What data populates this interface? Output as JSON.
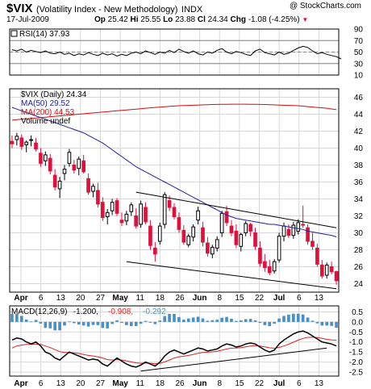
{
  "header": {
    "symbol": "$VIX",
    "name": "(Volatility Index - New Methodology)",
    "exchange": "INDX",
    "date": "17-Jul-2009",
    "stats": [
      {
        "label": "Op",
        "value": "25.42"
      },
      {
        "label": "Hi",
        "value": "25.55"
      },
      {
        "label": "Lo",
        "value": "23.88"
      },
      {
        "label": "Cl",
        "value": "24.34"
      },
      {
        "label": "Chg",
        "value": "-1.08 (-4.25%)"
      }
    ],
    "watermark": "@ StockCharts.com"
  },
  "colors": {
    "up": "#000000",
    "down": "#e0103c",
    "ma50": "#2020a0",
    "ma200": "#d01010",
    "histogram": "#4a90c8",
    "macd": "#000000",
    "signal": "#e02020",
    "grid": "#d8d8d8"
  },
  "chart_data": [
    {
      "type": "line",
      "panel": "rsi",
      "legend": "RSI(14) 37.93",
      "y_ticks": [
        "90",
        "70",
        "50",
        "30",
        "10"
      ],
      "ylim": [
        10,
        90
      ],
      "reference_lines": [
        70,
        50,
        30
      ],
      "series": [
        {
          "name": "RSI(14)",
          "values": [
            54,
            52,
            55,
            50,
            53,
            51,
            49,
            52,
            48,
            47,
            50,
            46,
            48,
            44,
            47,
            45,
            49,
            46,
            44,
            48,
            45,
            47,
            43,
            46,
            44,
            48,
            50,
            47,
            52,
            49,
            46,
            50,
            48,
            53,
            49,
            55,
            51,
            48,
            52,
            47,
            45,
            50,
            48,
            53,
            56,
            50,
            47,
            51,
            49,
            46,
            44,
            52,
            55,
            49,
            47,
            45,
            50,
            46,
            48,
            53,
            57,
            60,
            58,
            52,
            47,
            49,
            46,
            44,
            42,
            38
          ]
        }
      ]
    },
    {
      "type": "candlestick",
      "panel": "price",
      "legend": [
        {
          "text": "$VIX (Daily) 24.34",
          "color": "#000000"
        },
        {
          "text": "MA(50) 29.52",
          "color": "#2020a0"
        },
        {
          "text": "MA(200) 44.53",
          "color": "#d01010"
        },
        {
          "text": "Volume undef",
          "color": "#000000"
        }
      ],
      "y_ticks": [
        "46",
        "44",
        "42",
        "40",
        "38",
        "36",
        "34",
        "32",
        "30",
        "28",
        "26",
        "24"
      ],
      "ylim": [
        23,
        47
      ],
      "x_labels": [
        "Apr",
        "6",
        "13",
        "20",
        "27",
        "May",
        "11",
        "18",
        "26",
        "Jun",
        "8",
        "15",
        "22",
        "Jul",
        "6",
        "13"
      ],
      "candles": [
        [
          40.8,
          41.5,
          40.0,
          40.5
        ],
        [
          41.0,
          41.8,
          40.3,
          41.4
        ],
        [
          41.2,
          41.6,
          39.8,
          40.2
        ],
        [
          40.4,
          40.9,
          39.5,
          40.7
        ],
        [
          40.9,
          41.5,
          40.2,
          41.0
        ],
        [
          40.6,
          41.2,
          39.6,
          39.9
        ],
        [
          39.4,
          40.0,
          37.8,
          38.2
        ],
        [
          38.5,
          39.6,
          37.9,
          39.2
        ],
        [
          38.8,
          39.3,
          36.9,
          37.3
        ],
        [
          36.8,
          37.5,
          35.0,
          35.4
        ],
        [
          35.2,
          36.6,
          34.1,
          36.1
        ],
        [
          37.0,
          38.0,
          36.2,
          37.5
        ],
        [
          38.2,
          39.9,
          37.8,
          39.5
        ],
        [
          38.0,
          38.6,
          37.0,
          37.4
        ],
        [
          37.6,
          39.0,
          36.8,
          38.7
        ],
        [
          38.5,
          39.2,
          37.0,
          37.2
        ],
        [
          36.4,
          37.0,
          34.5,
          34.8
        ],
        [
          34.9,
          35.8,
          34.2,
          35.5
        ],
        [
          35.0,
          35.9,
          33.0,
          33.4
        ],
        [
          33.6,
          34.2,
          31.4,
          31.8
        ],
        [
          31.9,
          32.8,
          31.0,
          32.4
        ],
        [
          32.6,
          34.0,
          32.1,
          33.6
        ],
        [
          33.8,
          34.1,
          32.0,
          32.3
        ],
        [
          31.5,
          32.4,
          30.8,
          31.2
        ],
        [
          31.4,
          32.6,
          30.9,
          32.2
        ],
        [
          32.5,
          33.6,
          32.0,
          33.3
        ],
        [
          32.0,
          32.9,
          30.5,
          30.8
        ],
        [
          31.0,
          33.8,
          30.6,
          33.4
        ],
        [
          33.0,
          33.6,
          31.0,
          31.3
        ],
        [
          30.8,
          31.5,
          28.0,
          28.5
        ],
        [
          28.2,
          28.9,
          26.6,
          27.5
        ],
        [
          29.0,
          31.2,
          28.6,
          30.8
        ],
        [
          31.0,
          34.8,
          30.5,
          34.5
        ],
        [
          33.8,
          34.4,
          32.6,
          33.0
        ],
        [
          33.0,
          33.5,
          31.6,
          31.9
        ],
        [
          31.8,
          32.4,
          30.0,
          30.4
        ],
        [
          30.3,
          30.9,
          28.6,
          28.9
        ],
        [
          28.6,
          29.9,
          28.3,
          29.6
        ],
        [
          29.5,
          31.0,
          29.0,
          30.7
        ],
        [
          31.5,
          33.1,
          31.0,
          32.6
        ],
        [
          30.6,
          31.3,
          28.4,
          28.9
        ],
        [
          28.8,
          29.5,
          27.2,
          27.6
        ],
        [
          27.5,
          28.6,
          27.0,
          28.3
        ],
        [
          28.2,
          29.6,
          27.8,
          29.2
        ],
        [
          30.0,
          32.6,
          29.5,
          32.3
        ],
        [
          32.5,
          33.2,
          30.8,
          31.2
        ],
        [
          30.8,
          31.5,
          29.6,
          30.0
        ],
        [
          30.2,
          31.0,
          28.2,
          28.6
        ],
        [
          28.4,
          30.0,
          27.8,
          29.8
        ],
        [
          30.0,
          31.4,
          29.6,
          31.1
        ],
        [
          31.0,
          31.2,
          29.6,
          30.2
        ],
        [
          30.0,
          30.6,
          28.0,
          28.4
        ],
        [
          28.2,
          29.0,
          26.0,
          26.4
        ],
        [
          26.6,
          27.5,
          25.4,
          25.9
        ],
        [
          26.0,
          26.8,
          25.0,
          25.3
        ],
        [
          25.5,
          26.9,
          25.2,
          26.6
        ],
        [
          26.8,
          30.0,
          26.5,
          29.6
        ],
        [
          29.6,
          31.2,
          29.0,
          30.8
        ],
        [
          30.4,
          31.0,
          29.4,
          29.7
        ],
        [
          29.7,
          31.3,
          29.3,
          30.9
        ],
        [
          30.2,
          31.6,
          29.8,
          31.2
        ],
        [
          31.0,
          33.2,
          30.6,
          30.9
        ],
        [
          30.6,
          31.0,
          28.6,
          29.0
        ],
        [
          29.0,
          30.0,
          28.0,
          28.4
        ],
        [
          28.2,
          28.7,
          26.0,
          26.3
        ],
        [
          26.2,
          26.8,
          24.6,
          24.9
        ],
        [
          25.0,
          26.5,
          24.6,
          26.2
        ],
        [
          26.0,
          26.6,
          25.1,
          25.4
        ],
        [
          25.42,
          25.55,
          23.88,
          24.34
        ]
      ],
      "series": [
        {
          "name": "MA(50)",
          "values": [
            44.8,
            44.6,
            44.4,
            44.2,
            44.0,
            43.8,
            43.6,
            43.4,
            43.2,
            43.0,
            42.8,
            42.6,
            42.4,
            42.2,
            42.0,
            41.8,
            41.5,
            41.2,
            40.9,
            40.6,
            40.2,
            39.8,
            39.4,
            39.0,
            38.6,
            38.2,
            37.8,
            37.5,
            37.2,
            36.9,
            36.6,
            36.3,
            36.0,
            35.7,
            35.4,
            35.1,
            34.8,
            34.5,
            34.2,
            33.9,
            33.6,
            33.3,
            33.0,
            32.7,
            32.4,
            32.1,
            31.9,
            31.7,
            31.6,
            31.5,
            31.4,
            31.3,
            31.2,
            31.1,
            31.0,
            31.0,
            30.9,
            30.8,
            30.7,
            30.6,
            30.5,
            30.4,
            30.2,
            30.1,
            30.0,
            29.9,
            29.8,
            29.7,
            29.52
          ]
        },
        {
          "name": "MA(200)",
          "values": [
            43.3,
            43.35,
            43.4,
            43.45,
            43.5,
            43.55,
            43.6,
            43.65,
            43.7,
            43.75,
            43.8,
            43.85,
            43.9,
            43.95,
            44.0,
            44.05,
            44.1,
            44.15,
            44.2,
            44.25,
            44.3,
            44.35,
            44.4,
            44.45,
            44.5,
            44.55,
            44.6,
            44.65,
            44.7,
            44.75,
            44.8,
            44.84,
            44.88,
            44.92,
            44.96,
            45.0,
            45.02,
            45.04,
            45.06,
            45.08,
            45.1,
            45.12,
            45.14,
            45.15,
            45.16,
            45.17,
            45.18,
            45.18,
            45.18,
            45.18,
            45.17,
            45.16,
            45.15,
            45.14,
            45.12,
            45.1,
            45.08,
            45.06,
            45.04,
            45.02,
            45.0,
            44.95,
            44.9,
            44.85,
            44.8,
            44.75,
            44.7,
            44.62,
            44.53
          ]
        }
      ],
      "trendlines": [
        {
          "from": [
            26,
            34.8
          ],
          "to": [
            68,
            30.6
          ]
        },
        {
          "from": [
            24,
            26.6
          ],
          "to": [
            68,
            23.4
          ]
        }
      ]
    },
    {
      "type": "line",
      "panel": "macd",
      "legend": [
        {
          "text": "MACD(12,26,9)",
          "color": "#000000"
        },
        {
          "text": "-1.200,",
          "color": "#000000"
        },
        {
          "text": "-0.908,",
          "color": "#e02020"
        },
        {
          "text": "-0.292",
          "color": "#4a90c8"
        }
      ],
      "y_ticks": [
        "0.5",
        "0.0",
        "-0.5",
        "-1.0",
        "-1.5",
        "-2.0",
        "-2.5"
      ],
      "ylim": [
        -2.7,
        0.8
      ],
      "x_labels": [
        "Apr",
        "6",
        "13",
        "20",
        "27",
        "May",
        "11",
        "18",
        "26",
        "Jun",
        "8",
        "15",
        "22",
        "Jul",
        "6",
        "13"
      ],
      "series": [
        {
          "name": "MACD",
          "values": [
            -0.9,
            -0.8,
            -0.85,
            -1.0,
            -1.1,
            -1.0,
            -1.2,
            -1.5,
            -1.6,
            -1.8,
            -1.9,
            -1.7,
            -1.5,
            -1.6,
            -1.7,
            -1.8,
            -1.9,
            -1.85,
            -1.9,
            -2.1,
            -2.2,
            -2.0,
            -1.8,
            -1.95,
            -2.1,
            -2.2,
            -2.25,
            -2.15,
            -2.0,
            -2.1,
            -2.2,
            -2.0,
            -1.7,
            -1.5,
            -1.4,
            -1.5,
            -1.6,
            -1.5,
            -1.4,
            -1.3,
            -1.35,
            -1.45,
            -1.4,
            -1.35,
            -1.2,
            -1.1,
            -1.15,
            -1.25,
            -1.2,
            -1.1,
            -1.05,
            -1.1,
            -1.25,
            -1.4,
            -1.5,
            -1.4,
            -1.1,
            -0.9,
            -0.75,
            -0.6,
            -0.5,
            -0.45,
            -0.55,
            -0.7,
            -0.85,
            -1.0,
            -1.05,
            -1.1,
            -1.2
          ]
        },
        {
          "name": "Signal",
          "values": [
            -1.3,
            -1.2,
            -1.15,
            -1.12,
            -1.12,
            -1.1,
            -1.12,
            -1.2,
            -1.28,
            -1.38,
            -1.48,
            -1.52,
            -1.52,
            -1.54,
            -1.57,
            -1.62,
            -1.67,
            -1.7,
            -1.74,
            -1.8,
            -1.88,
            -1.9,
            -1.88,
            -1.9,
            -1.94,
            -1.99,
            -2.04,
            -2.06,
            -2.05,
            -2.06,
            -2.09,
            -2.07,
            -1.99,
            -1.9,
            -1.8,
            -1.74,
            -1.71,
            -1.67,
            -1.62,
            -1.56,
            -1.52,
            -1.51,
            -1.49,
            -1.46,
            -1.41,
            -1.35,
            -1.31,
            -1.3,
            -1.28,
            -1.24,
            -1.2,
            -1.18,
            -1.2,
            -1.24,
            -1.29,
            -1.31,
            -1.27,
            -1.2,
            -1.11,
            -1.01,
            -0.91,
            -0.82,
            -0.77,
            -0.76,
            -0.78,
            -0.82,
            -0.87,
            -0.9,
            -0.908
          ]
        }
      ],
      "histogram": [
        0.4,
        0.4,
        0.3,
        0.12,
        0.02,
        0.1,
        -0.08,
        -0.3,
        -0.32,
        -0.42,
        -0.42,
        -0.18,
        0.02,
        -0.06,
        -0.13,
        -0.18,
        -0.23,
        -0.15,
        -0.16,
        -0.3,
        -0.32,
        -0.1,
        0.08,
        -0.05,
        -0.16,
        -0.21,
        -0.21,
        -0.09,
        0.05,
        -0.04,
        -0.11,
        0.07,
        0.29,
        0.4,
        0.4,
        0.24,
        0.11,
        0.17,
        0.22,
        0.26,
        0.17,
        0.06,
        0.09,
        0.11,
        0.21,
        0.25,
        0.16,
        0.05,
        0.08,
        0.14,
        0.15,
        0.08,
        -0.05,
        -0.16,
        -0.21,
        -0.09,
        0.17,
        0.3,
        0.36,
        0.41,
        0.41,
        0.37,
        0.22,
        0.06,
        -0.07,
        -0.18,
        -0.18,
        -0.2,
        -0.292
      ],
      "trendlines": [
        {
          "from": [
            27,
            -2.45
          ],
          "to": [
            66,
            -1.3
          ]
        }
      ]
    }
  ]
}
